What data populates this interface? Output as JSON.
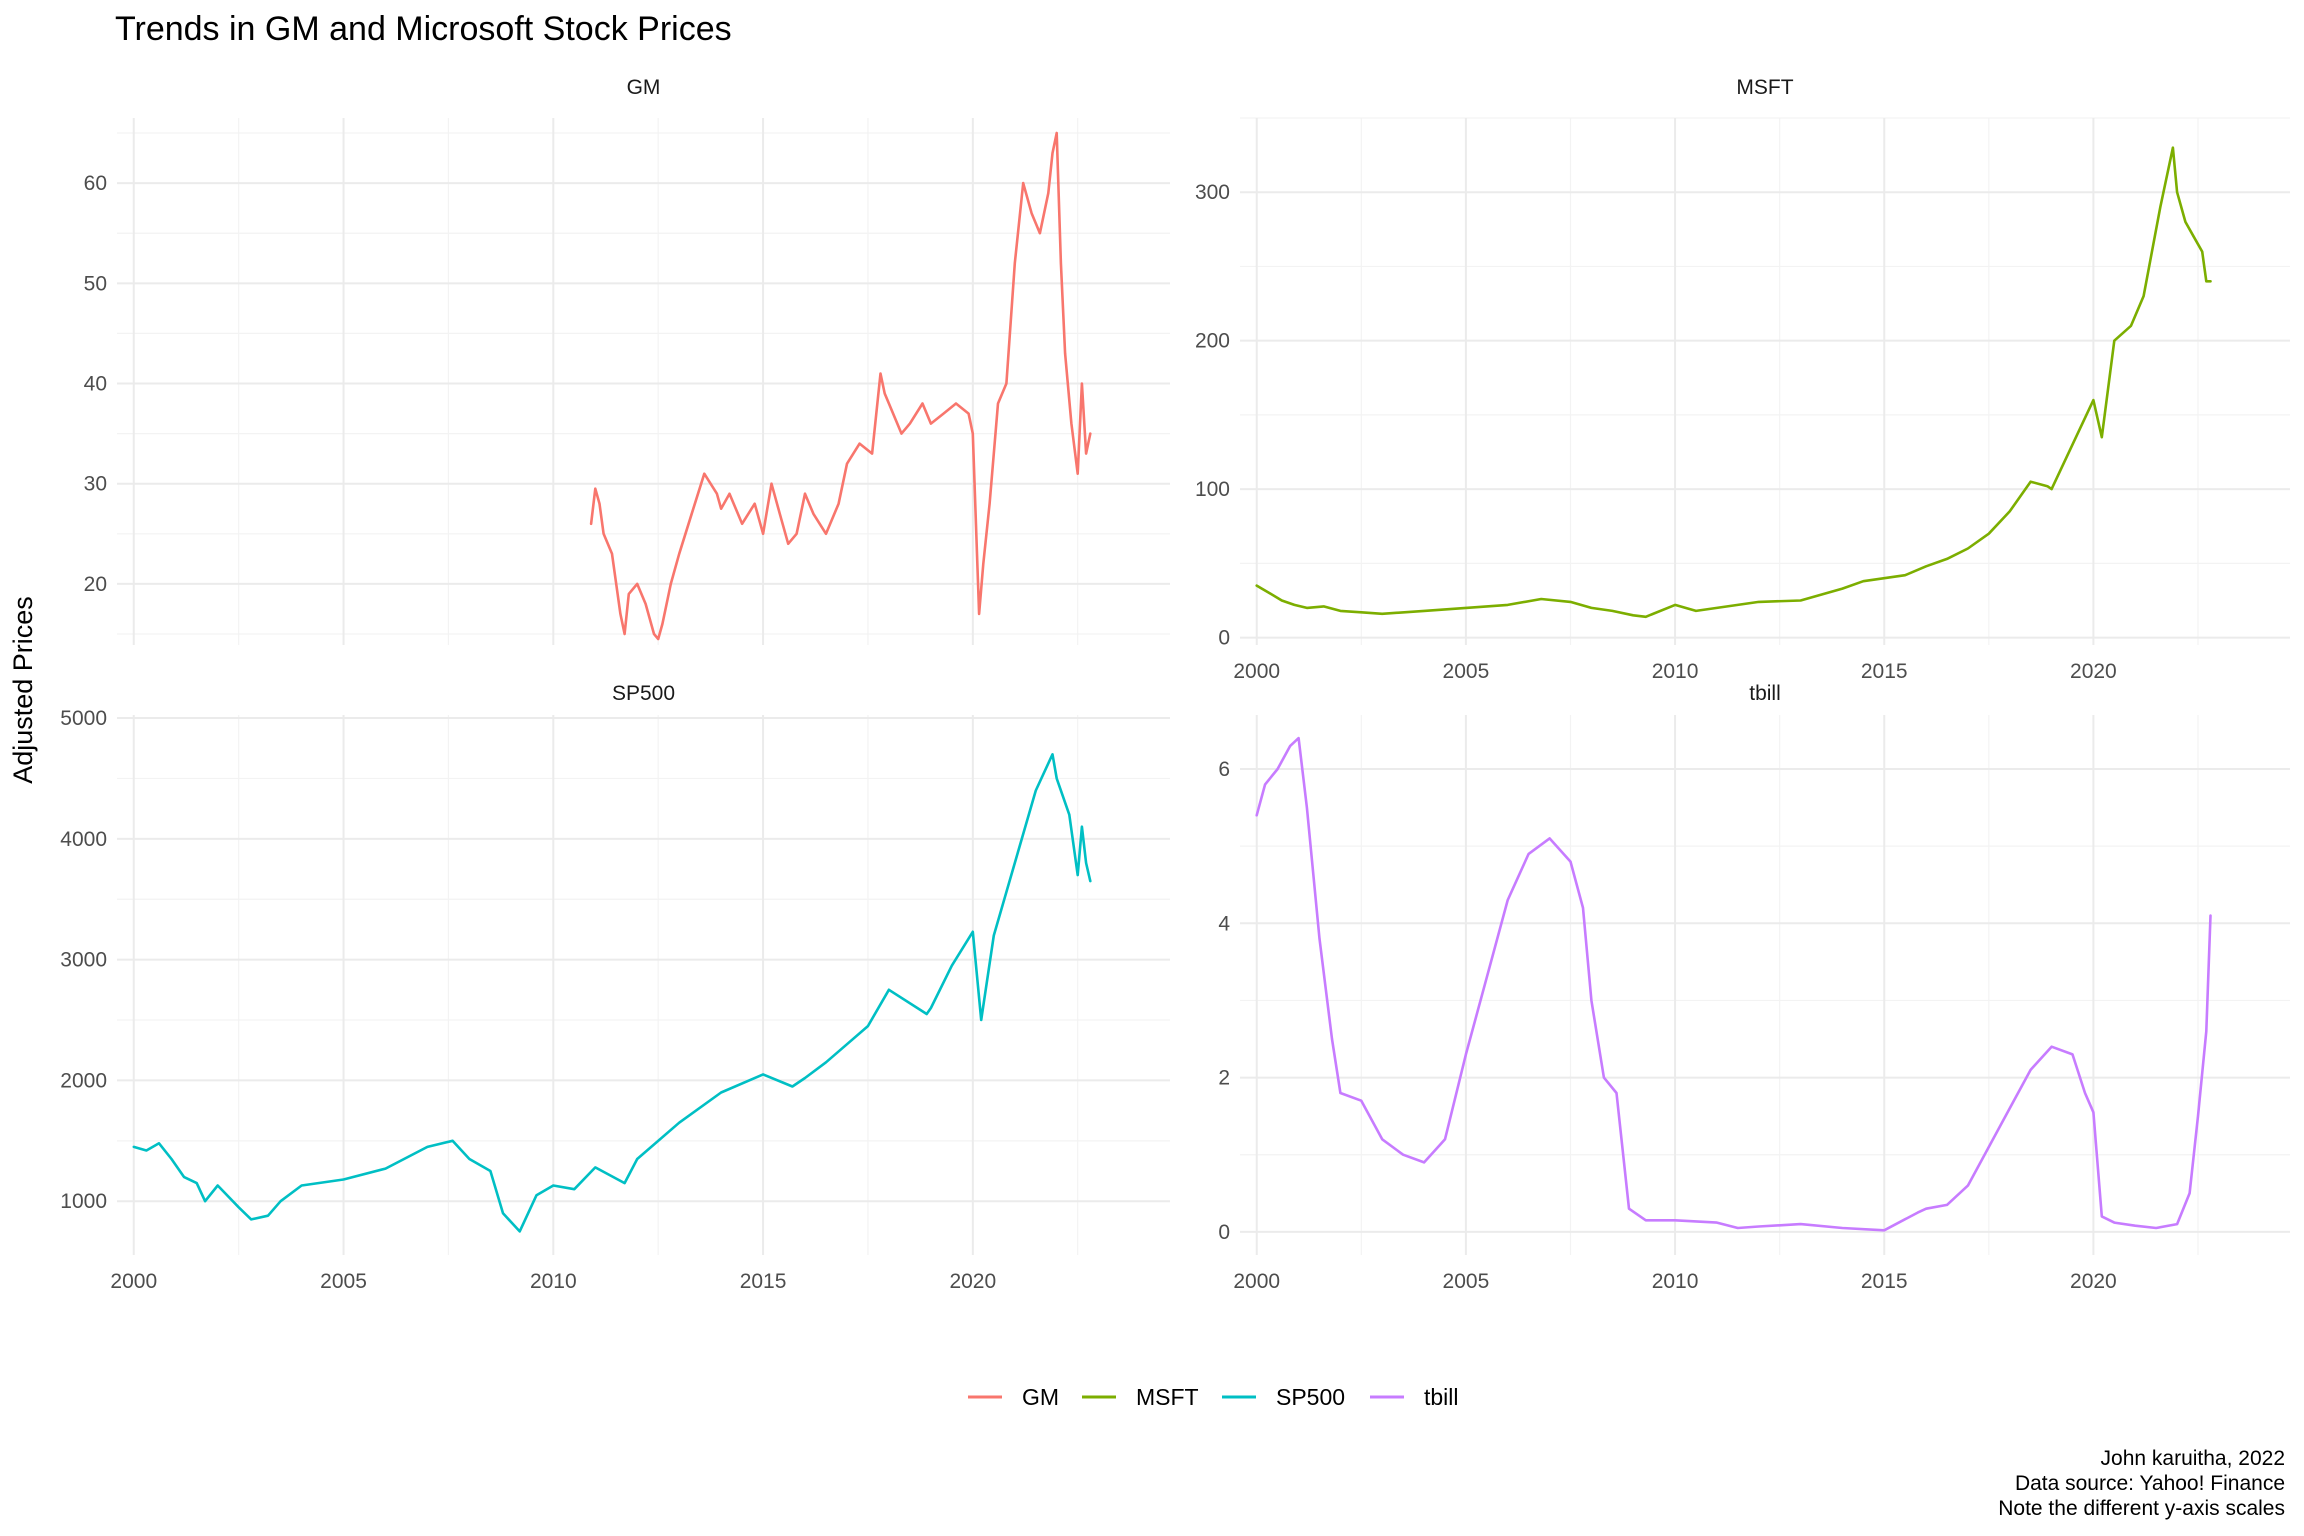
{
  "title": "Trends in GM and Microsoft Stock Prices",
  "ylabel": "Adjusted Prices",
  "caption": [
    "John karuitha, 2022",
    "Data source: Yahoo! Finance",
    "Note the different y-axis scales"
  ],
  "legend": [
    {
      "name": "GM",
      "color": "#F8766D"
    },
    {
      "name": "MSFT",
      "color": "#7CAE00"
    },
    {
      "name": "SP500",
      "color": "#00BFC4"
    },
    {
      "name": "tbill",
      "color": "#C77CFF"
    }
  ],
  "chart_data": [
    {
      "type": "line",
      "panel": "GM",
      "color": "#F8766D",
      "xlim": [
        1999.6,
        2024.7
      ],
      "ylim": [
        13.9,
        66.5
      ],
      "yticks": [
        20,
        30,
        40,
        50,
        60
      ],
      "xticks": [
        2000,
        2005,
        2010,
        2015,
        2020
      ],
      "show_x_ticks": false,
      "x": [
        2010.9,
        2011.0,
        2011.1,
        2011.2,
        2011.4,
        2011.6,
        2011.7,
        2011.8,
        2012.0,
        2012.2,
        2012.4,
        2012.5,
        2012.6,
        2012.8,
        2013.0,
        2013.3,
        2013.6,
        2013.9,
        2014.0,
        2014.2,
        2014.5,
        2014.8,
        2015.0,
        2015.2,
        2015.4,
        2015.6,
        2015.8,
        2016.0,
        2016.2,
        2016.5,
        2016.8,
        2017.0,
        2017.3,
        2017.6,
        2017.8,
        2017.9,
        2018.0,
        2018.3,
        2018.5,
        2018.8,
        2019.0,
        2019.3,
        2019.6,
        2019.9,
        2020.0,
        2020.15,
        2020.25,
        2020.4,
        2020.6,
        2020.8,
        2021.0,
        2021.2,
        2021.4,
        2021.6,
        2021.8,
        2021.9,
        2022.0,
        2022.1,
        2022.2,
        2022.35,
        2022.5,
        2022.6,
        2022.7,
        2022.8
      ],
      "values": [
        26,
        29.5,
        28,
        25,
        23,
        17,
        15,
        19,
        20,
        18,
        15,
        14.5,
        16,
        20,
        23,
        27,
        31,
        29,
        27.5,
        29,
        26,
        28,
        25,
        30,
        27,
        24,
        25,
        29,
        27,
        25,
        28,
        32,
        34,
        33,
        41,
        39,
        38,
        35,
        36,
        38,
        36,
        37,
        38,
        37,
        35,
        17,
        22,
        28,
        38,
        40,
        52,
        60,
        57,
        55,
        59,
        63,
        65,
        52,
        43,
        36,
        31,
        40,
        33,
        35
      ]
    },
    {
      "type": "line",
      "panel": "MSFT",
      "color": "#7CAE00",
      "xlim": [
        1999.6,
        2024.7
      ],
      "ylim": [
        -5,
        350
      ],
      "yticks": [
        0,
        100,
        200,
        300
      ],
      "xticks": [
        2000,
        2005,
        2010,
        2015,
        2020
      ],
      "show_x_ticks": true,
      "x": [
        2000.0,
        2000.3,
        2000.6,
        2000.9,
        2001.2,
        2001.6,
        2002.0,
        2002.5,
        2003.0,
        2004.0,
        2005.0,
        2006.0,
        2006.8,
        2007.5,
        2008.0,
        2008.5,
        2009.0,
        2009.3,
        2010.0,
        2010.5,
        2011.0,
        2012.0,
        2013.0,
        2014.0,
        2014.5,
        2015.0,
        2015.5,
        2016.0,
        2016.5,
        2017.0,
        2017.5,
        2018.0,
        2018.5,
        2018.9,
        2019.0,
        2019.5,
        2020.0,
        2020.2,
        2020.5,
        2020.9,
        2021.2,
        2021.6,
        2021.9,
        2022.0,
        2022.2,
        2022.4,
        2022.6,
        2022.7,
        2022.8
      ],
      "values": [
        35,
        30,
        25,
        22,
        20,
        21,
        18,
        17,
        16,
        18,
        20,
        22,
        26,
        24,
        20,
        18,
        15,
        14,
        22,
        18,
        20,
        24,
        25,
        33,
        38,
        40,
        42,
        48,
        53,
        60,
        70,
        85,
        105,
        102,
        100,
        130,
        160,
        135,
        200,
        210,
        230,
        290,
        330,
        300,
        280,
        270,
        260,
        240,
        240
      ]
    },
    {
      "type": "line",
      "panel": "SP500",
      "color": "#00BFC4",
      "xlim": [
        1999.6,
        2024.7
      ],
      "ylim": [
        555,
        5025
      ],
      "yticks": [
        1000,
        2000,
        3000,
        4000,
        5000
      ],
      "xticks": [
        2000,
        2005,
        2010,
        2015,
        2020
      ],
      "show_x_ticks": true,
      "x": [
        2000.0,
        2000.3,
        2000.6,
        2000.9,
        2001.2,
        2001.5,
        2001.7,
        2002.0,
        2002.5,
        2002.8,
        2003.2,
        2003.5,
        2004.0,
        2005.0,
        2006.0,
        2007.0,
        2007.6,
        2008.0,
        2008.5,
        2008.8,
        2009.2,
        2009.6,
        2010.0,
        2010.5,
        2011.0,
        2011.7,
        2012.0,
        2013.0,
        2014.0,
        2015.0,
        2015.7,
        2016.0,
        2016.5,
        2017.0,
        2017.5,
        2018.0,
        2018.9,
        2019.0,
        2019.5,
        2020.0,
        2020.2,
        2020.5,
        2021.0,
        2021.5,
        2021.9,
        2022.0,
        2022.3,
        2022.5,
        2022.6,
        2022.7,
        2022.8
      ],
      "values": [
        1450,
        1420,
        1480,
        1350,
        1200,
        1150,
        1000,
        1130,
        950,
        850,
        880,
        1000,
        1130,
        1180,
        1270,
        1450,
        1500,
        1350,
        1250,
        900,
        750,
        1050,
        1130,
        1100,
        1280,
        1150,
        1350,
        1650,
        1900,
        2050,
        1950,
        2020,
        2150,
        2300,
        2450,
        2750,
        2550,
        2600,
        2950,
        3230,
        2500,
        3200,
        3800,
        4400,
        4700,
        4500,
        4200,
        3700,
        4100,
        3800,
        3650
      ]
    },
    {
      "type": "line",
      "panel": "tbill",
      "color": "#C77CFF",
      "xlim": [
        1999.6,
        2024.7
      ],
      "ylim": [
        -0.3,
        6.7
      ],
      "yticks": [
        0,
        2,
        4,
        6
      ],
      "xticks": [
        2000,
        2005,
        2010,
        2015,
        2020
      ],
      "show_x_ticks": true,
      "x": [
        2000.0,
        2000.2,
        2000.5,
        2000.8,
        2001.0,
        2001.2,
        2001.5,
        2001.8,
        2002.0,
        2002.5,
        2003.0,
        2003.5,
        2004.0,
        2004.5,
        2005.0,
        2005.5,
        2006.0,
        2006.5,
        2007.0,
        2007.5,
        2007.8,
        2008.0,
        2008.3,
        2008.6,
        2008.9,
        2009.3,
        2010.0,
        2011.0,
        2011.5,
        2012.0,
        2013.0,
        2014.0,
        2015.0,
        2015.8,
        2016.0,
        2016.5,
        2017.0,
        2017.5,
        2018.0,
        2018.5,
        2019.0,
        2019.5,
        2019.8,
        2020.0,
        2020.2,
        2020.5,
        2021.0,
        2021.5,
        2022.0,
        2022.3,
        2022.5,
        2022.7,
        2022.8
      ],
      "values": [
        5.4,
        5.8,
        6.0,
        6.3,
        6.4,
        5.5,
        3.8,
        2.5,
        1.8,
        1.7,
        1.2,
        1.0,
        0.9,
        1.2,
        2.3,
        3.3,
        4.3,
        4.9,
        5.1,
        4.8,
        4.2,
        3.0,
        2.0,
        1.8,
        0.3,
        0.15,
        0.15,
        0.12,
        0.05,
        0.07,
        0.1,
        0.05,
        0.02,
        0.25,
        0.3,
        0.35,
        0.6,
        1.1,
        1.6,
        2.1,
        2.4,
        2.3,
        1.8,
        1.55,
        0.2,
        0.12,
        0.08,
        0.05,
        0.1,
        0.5,
        1.5,
        2.6,
        4.1
      ]
    }
  ]
}
